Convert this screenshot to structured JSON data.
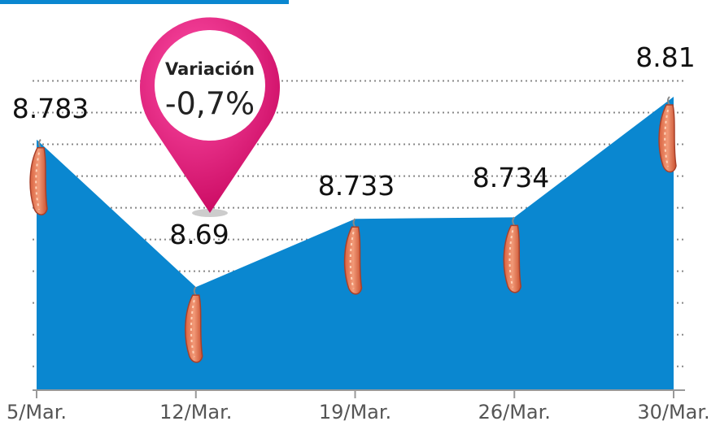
{
  "chart_data": {
    "type": "area",
    "categories": [
      "5/Mar.",
      "12/Mar.",
      "19/Mar.",
      "26/Mar.",
      "30/Mar."
    ],
    "values": [
      8.783,
      8.69,
      8.733,
      8.734,
      8.81
    ],
    "color": "#0a87d0",
    "ylim": [
      8.625,
      8.871
    ],
    "yticks": [
      8.64,
      8.66,
      8.68,
      8.7,
      8.72,
      8.74,
      8.76,
      8.78,
      8.8,
      8.82
    ],
    "grid": true,
    "annotation": {
      "title": "Variación",
      "value": "-0,7%"
    }
  }
}
